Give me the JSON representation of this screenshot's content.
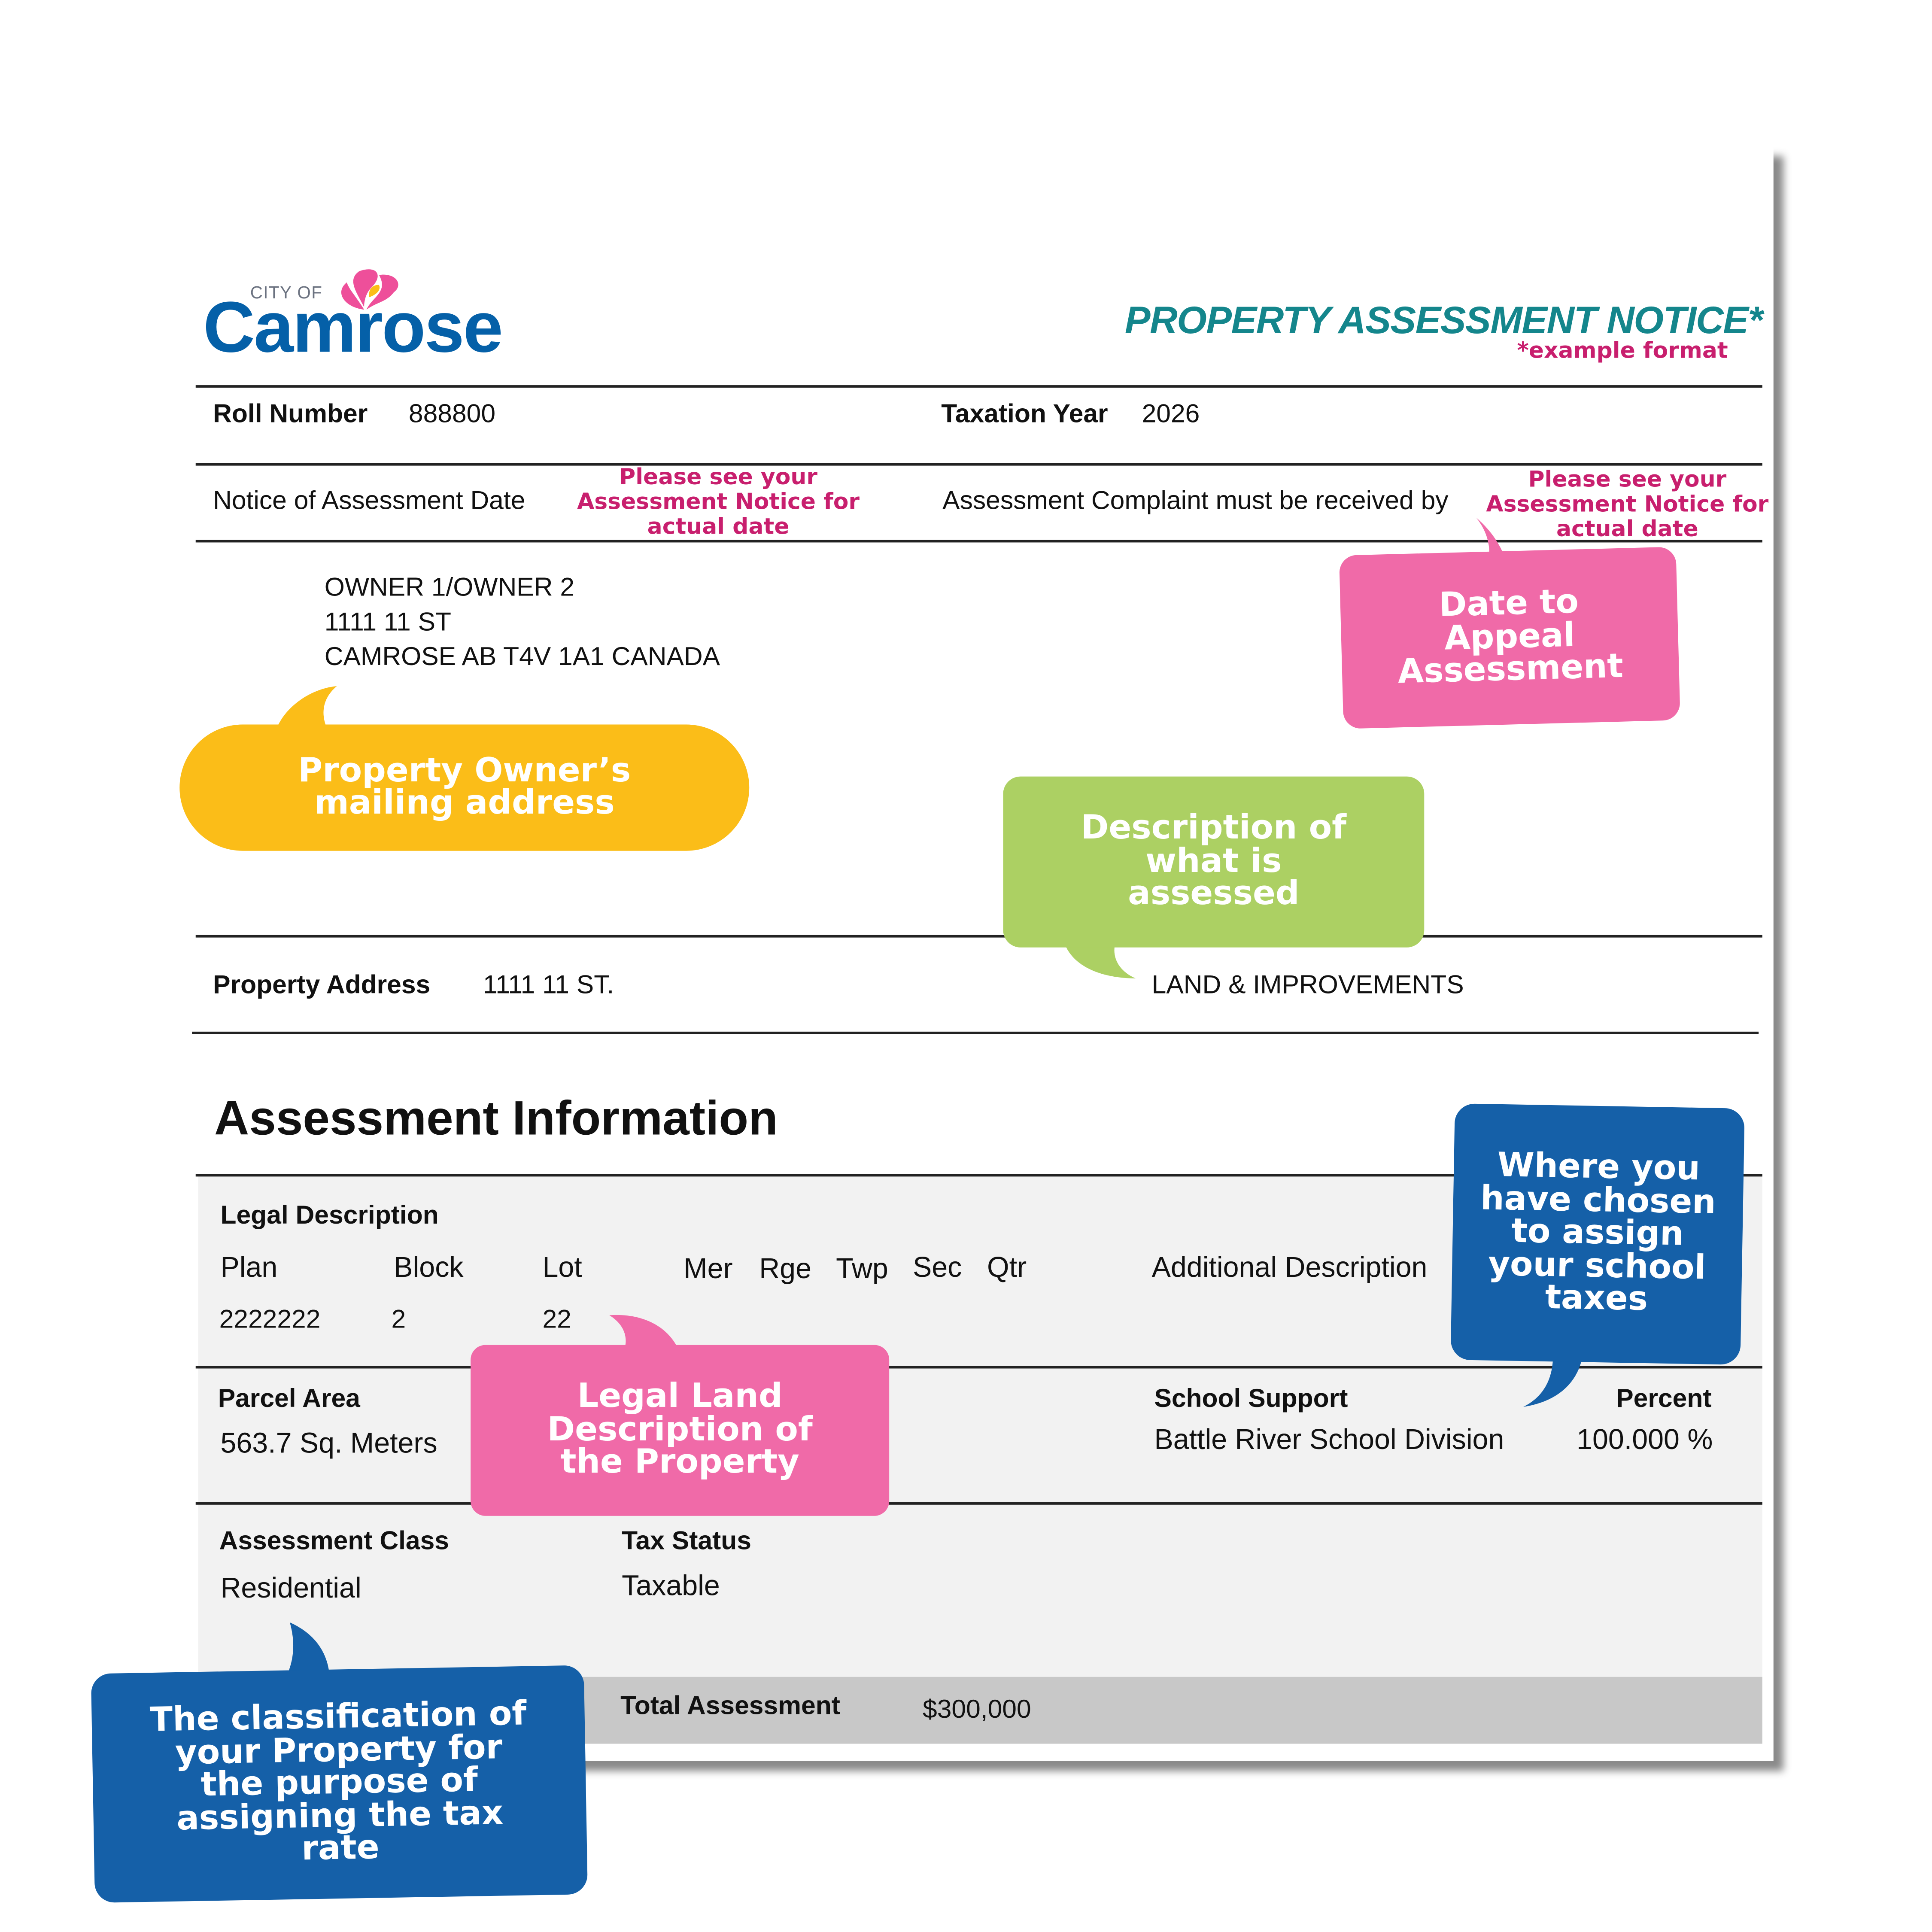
{
  "colors": {
    "teal": "#14868c",
    "pink_text": "#c81f6e",
    "pink_bubble": "#f06aa8",
    "yellow_bubble": "#fbbd18",
    "green_bubble": "#acd063",
    "blue_bubble": "#1560a8",
    "logo_blue": "#0560a8"
  },
  "logo": {
    "city_of": "CITY OF",
    "name": "Camrose"
  },
  "header": {
    "title": "PROPERTY ASSESSMENT NOTICE*",
    "subtitle": "*example format"
  },
  "roll": {
    "label": "Roll Number",
    "value": "888800"
  },
  "tax_year": {
    "label": "Taxation Year",
    "value": "2026"
  },
  "notice_date": {
    "label": "Notice of Assessment Date",
    "value": "Please see your\nAssessment Notice for\nactual date"
  },
  "complaint": {
    "label": "Assessment Complaint must be received by",
    "value": "Please see your\nAssessment Notice for\nactual date"
  },
  "owner": {
    "line1": "OWNER 1/OWNER 2",
    "line2": "1111 11 ST",
    "line3": "CAMROSE AB T4V 1A1 CANADA"
  },
  "property": {
    "label": "Property Address",
    "value": "1111 11 ST.",
    "type": "LAND & IMPROVEMENTS"
  },
  "assessment": {
    "heading": "Assessment Information",
    "legal_label": "Legal Description",
    "columns": [
      "Plan",
      "Block",
      "Lot",
      "Mer",
      "Rge",
      "Twp",
      "Sec",
      "Qtr",
      "Additional Description"
    ],
    "values": {
      "plan": "2222222",
      "block": "2",
      "lot": "22"
    },
    "parcel_label": "Parcel Area",
    "parcel_value": "563.7 Sq. Meters",
    "school_label": "School Support",
    "school_value": "Battle River School Division",
    "percent_label": "Percent",
    "percent_value": "100.000 %",
    "class_label": "Assessment Class",
    "class_value": "Residential",
    "tax_status_label": "Tax Status",
    "tax_status_value": "Taxable",
    "total_label": "Total Assessment",
    "total_value": "$300,000"
  },
  "callouts": {
    "owner": "Property Owner’s\nmailing address",
    "appeal": "Date to\nAppeal\nAssessment",
    "description": "Description of\nwhat is\nassessed",
    "school": "Where you\nhave chosen\nto assign\nyour school\ntaxes",
    "legal": "Legal Land\nDescription of\nthe Property",
    "classification": "The classification of\nyour Property for\nthe purpose of\nassigning the tax\nrate"
  }
}
